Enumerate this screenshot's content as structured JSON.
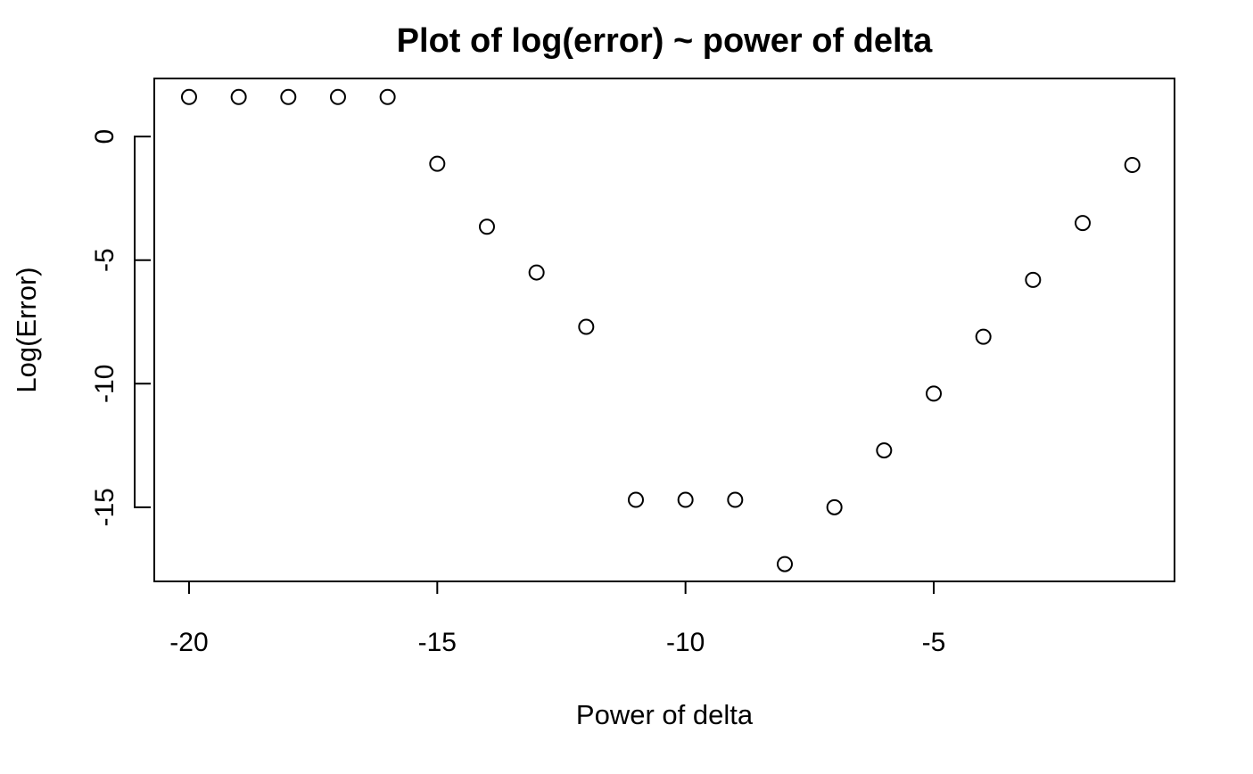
{
  "chart_data": {
    "type": "scatter",
    "title": "Plot of log(error) ~ power of delta",
    "xlabel": "Power of delta",
    "ylabel": "Log(Error)",
    "xlim": [
      -20.7,
      -0.15
    ],
    "ylim": [
      -18,
      2.35
    ],
    "xticks": [
      -20,
      -15,
      -10,
      -5
    ],
    "xtick_labels": [
      "-20",
      "-15",
      "-10",
      "-5"
    ],
    "yticks": [
      0,
      -5,
      -10,
      -15
    ],
    "ytick_labels": [
      "0",
      "-5",
      "-10",
      "-15"
    ],
    "grid": false,
    "marker": "open-circle",
    "x": [
      -20,
      -19,
      -18,
      -17,
      -16,
      -15,
      -14,
      -13,
      -12,
      -11,
      -10,
      -9,
      -8,
      -7,
      -6,
      -5,
      -4,
      -3,
      -2,
      -1
    ],
    "y": [
      1.6,
      1.6,
      1.6,
      1.6,
      1.6,
      -1.1,
      -3.65,
      -5.5,
      -7.7,
      -14.7,
      -14.7,
      -14.7,
      -17.3,
      -15.0,
      -12.7,
      -10.4,
      -8.1,
      -5.8,
      -3.5,
      -1.15
    ]
  }
}
